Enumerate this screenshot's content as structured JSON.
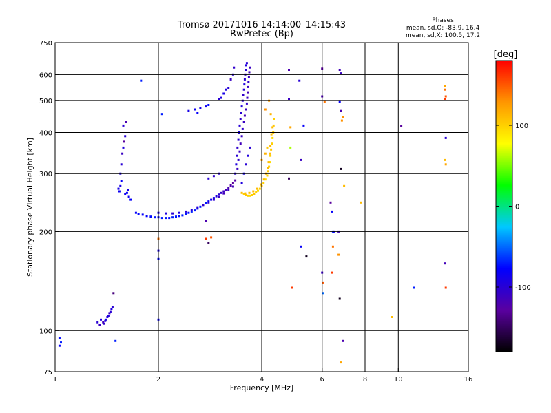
{
  "chart_data": {
    "type": "scatter",
    "title": "Tromsø 20171016 14:14:00–14:15:43",
    "subtitle": "RwPretec (Bp)",
    "stats": {
      "heading": "Phases",
      "line1": "mean, sd,O: -83.9, 16.4",
      "line2": "mean, sd,X: 100.5, 17.2"
    },
    "xlabel": "Frequency [MHz]",
    "ylabel": "Stationary phase Virtual Height [km]",
    "x_scale": "log",
    "y_scale": "log",
    "xlim": [
      1,
      16
    ],
    "ylim": [
      75,
      750
    ],
    "x_ticks": [
      1,
      2,
      4,
      6,
      8,
      10,
      16
    ],
    "y_ticks": [
      75,
      100,
      200,
      300,
      400,
      500,
      600,
      750
    ],
    "x_grid": [
      2,
      4,
      6,
      8,
      10
    ],
    "y_grid": [
      100,
      200,
      300,
      400,
      500,
      600
    ],
    "grid": true,
    "colorbar": {
      "label": "[deg]",
      "ticks": [
        100,
        0,
        -100
      ],
      "range": [
        -180,
        180
      ],
      "colors": [
        "#000000",
        "#5a00a0",
        "#0000ff",
        "#00c8ff",
        "#00ff00",
        "#ffff00",
        "#ff9600",
        "#ff0000"
      ]
    },
    "series": [
      {
        "points": [
          [
            1.33,
            106,
            -100
          ],
          [
            1.35,
            104,
            -110
          ],
          [
            1.36,
            108,
            -95
          ],
          [
            1.38,
            106,
            -115
          ],
          [
            1.39,
            105,
            -105
          ],
          [
            1.4,
            107,
            -100
          ],
          [
            1.41,
            108,
            -90
          ],
          [
            1.42,
            110,
            -100
          ],
          [
            1.43,
            111,
            -95
          ],
          [
            1.44,
            113,
            -110
          ],
          [
            1.45,
            114,
            -100
          ],
          [
            1.46,
            116,
            -95
          ],
          [
            1.47,
            118,
            -100
          ],
          [
            1.48,
            130,
            -140
          ],
          [
            1.53,
            270,
            -90
          ],
          [
            1.54,
            265,
            -85
          ],
          [
            1.55,
            275,
            -90
          ],
          [
            1.56,
            285,
            -80
          ],
          [
            1.55,
            300,
            -95
          ],
          [
            1.56,
            320,
            -100
          ],
          [
            1.57,
            345,
            -110
          ],
          [
            1.58,
            360,
            -95
          ],
          [
            1.59,
            375,
            -130
          ],
          [
            1.6,
            390,
            -100
          ],
          [
            1.61,
            430,
            -120
          ],
          [
            1.58,
            420,
            -100
          ],
          [
            1.6,
            260,
            -85
          ],
          [
            1.62,
            262,
            -80
          ],
          [
            1.63,
            268,
            -90
          ],
          [
            1.64,
            255,
            -85
          ],
          [
            1.66,
            250,
            -80
          ],
          [
            1.72,
            228,
            -80
          ],
          [
            1.75,
            226,
            -75
          ],
          [
            1.8,
            225,
            -80
          ],
          [
            1.85,
            223,
            -78
          ],
          [
            1.9,
            222,
            -75
          ],
          [
            1.95,
            221,
            -72
          ],
          [
            2.0,
            221,
            -75
          ],
          [
            2.05,
            220,
            -70
          ],
          [
            2.1,
            220,
            -72
          ],
          [
            2.15,
            220,
            -75
          ],
          [
            2.2,
            221,
            -70
          ],
          [
            2.25,
            222,
            -72
          ],
          [
            2.3,
            223,
            -75
          ],
          [
            2.35,
            224,
            -70
          ],
          [
            2.4,
            226,
            -72
          ],
          [
            2.45,
            228,
            -75
          ],
          [
            2.5,
            230,
            -70
          ],
          [
            2.55,
            232,
            -72
          ],
          [
            2.6,
            235,
            -75
          ],
          [
            2.65,
            238,
            -70
          ],
          [
            2.7,
            241,
            -75
          ],
          [
            2.75,
            244,
            -72
          ],
          [
            2.8,
            247,
            -80
          ],
          [
            2.85,
            250,
            -85
          ],
          [
            2.9,
            253,
            -90
          ],
          [
            2.95,
            256,
            -95
          ],
          [
            3.0,
            259,
            -100
          ],
          [
            3.05,
            262,
            -105
          ],
          [
            3.1,
            265,
            -110
          ],
          [
            3.15,
            268,
            -115
          ],
          [
            3.2,
            272,
            -120
          ],
          [
            3.25,
            276,
            -125
          ],
          [
            3.3,
            281,
            -130
          ],
          [
            3.35,
            286,
            -125
          ],
          [
            2.0,
            228,
            -90
          ],
          [
            2.1,
            227,
            -95
          ],
          [
            2.2,
            227,
            -100
          ],
          [
            2.3,
            228,
            -95
          ],
          [
            2.4,
            230,
            -100
          ],
          [
            2.5,
            233,
            -95
          ],
          [
            2.6,
            237,
            -100
          ],
          [
            2.7,
            241,
            -105
          ],
          [
            2.8,
            245,
            -100
          ],
          [
            2.9,
            250,
            -105
          ],
          [
            3.0,
            255,
            -110
          ],
          [
            3.1,
            261,
            -115
          ],
          [
            3.2,
            267,
            -110
          ],
          [
            3.3,
            274,
            -115
          ],
          [
            3.35,
            300,
            -100
          ],
          [
            3.37,
            320,
            -95
          ],
          [
            3.38,
            340,
            -100
          ],
          [
            3.4,
            360,
            -105
          ],
          [
            3.42,
            380,
            -100
          ],
          [
            3.43,
            400,
            -95
          ],
          [
            3.45,
            420,
            -100
          ],
          [
            3.47,
            440,
            -105
          ],
          [
            3.48,
            460,
            -100
          ],
          [
            3.5,
            480,
            -95
          ],
          [
            3.52,
            500,
            -100
          ],
          [
            3.53,
            520,
            -105
          ],
          [
            3.55,
            540,
            -100
          ],
          [
            3.56,
            560,
            -95
          ],
          [
            3.57,
            580,
            -100
          ],
          [
            3.58,
            600,
            -105
          ],
          [
            3.59,
            620,
            -100
          ],
          [
            3.6,
            640,
            -95
          ],
          [
            3.62,
            650,
            -100
          ],
          [
            3.4,
            310,
            -110
          ],
          [
            3.42,
            330,
            -105
          ],
          [
            3.45,
            350,
            -110
          ],
          [
            3.47,
            370,
            -115
          ],
          [
            3.5,
            390,
            -110
          ],
          [
            3.52,
            410,
            -105
          ],
          [
            3.55,
            430,
            -110
          ],
          [
            3.57,
            450,
            -115
          ],
          [
            3.6,
            470,
            -110
          ],
          [
            3.62,
            490,
            -105
          ],
          [
            3.63,
            510,
            -110
          ],
          [
            3.64,
            530,
            -115
          ],
          [
            3.65,
            550,
            -110
          ],
          [
            3.66,
            570,
            -105
          ],
          [
            3.67,
            590,
            -110
          ],
          [
            3.68,
            610,
            -115
          ],
          [
            3.69,
            630,
            -110
          ],
          [
            3.3,
            600,
            -100
          ],
          [
            3.32,
            630,
            -105
          ],
          [
            3.25,
            580,
            -110
          ],
          [
            3.5,
            280,
            -95
          ],
          [
            3.55,
            300,
            -90
          ],
          [
            3.6,
            320,
            -100
          ],
          [
            3.65,
            340,
            -95
          ],
          [
            3.7,
            360,
            -100
          ],
          [
            2.45,
            465,
            -90
          ],
          [
            2.55,
            470,
            -85
          ],
          [
            2.6,
            460,
            -80
          ],
          [
            2.65,
            475,
            -90
          ],
          [
            2.75,
            480,
            -85
          ],
          [
            2.8,
            485,
            -75
          ],
          [
            3.0,
            505,
            -100
          ],
          [
            3.05,
            510,
            -95
          ],
          [
            3.1,
            525,
            -90
          ],
          [
            3.15,
            540,
            -95
          ],
          [
            3.2,
            545,
            -100
          ],
          [
            2.75,
            215,
            -120
          ],
          [
            2.8,
            290,
            -100
          ],
          [
            2.9,
            295,
            -105
          ],
          [
            3.0,
            300,
            -100
          ],
          [
            1.78,
            575,
            -70
          ],
          [
            2.05,
            455,
            -70
          ],
          [
            2.0,
            175,
            -90
          ],
          [
            2.0,
            165,
            -75
          ],
          [
            2.0,
            108,
            -80
          ],
          [
            1.03,
            95,
            -75
          ],
          [
            1.04,
            92,
            -70
          ],
          [
            1.03,
            90,
            -80
          ],
          [
            1.5,
            93,
            -70
          ],
          [
            2.75,
            190,
            160
          ],
          [
            2.85,
            192,
            150
          ],
          [
            2.8,
            185,
            -150
          ],
          [
            2.0,
            190,
            140
          ],
          [
            4.8,
            620,
            -120
          ],
          [
            5.15,
            575,
            -100
          ],
          [
            5.3,
            420,
            -80
          ],
          [
            5.2,
            330,
            -110
          ],
          [
            4.8,
            290,
            -150
          ],
          [
            5.2,
            180,
            -80
          ],
          [
            5.4,
            168,
            -170
          ],
          [
            4.9,
            135,
            160
          ],
          [
            4.85,
            415,
            120
          ],
          [
            4.85,
            360,
            60
          ],
          [
            4.8,
            505,
            -110
          ],
          [
            6.0,
            625,
            -130
          ],
          [
            6.0,
            515,
            -120
          ],
          [
            6.1,
            495,
            140
          ],
          [
            6.0,
            150,
            -110
          ],
          [
            6.05,
            140,
            150
          ],
          [
            6.05,
            130,
            -50
          ],
          [
            6.35,
            245,
            -130
          ],
          [
            6.4,
            230,
            -80
          ],
          [
            6.45,
            200,
            -70
          ],
          [
            6.45,
            180,
            140
          ],
          [
            6.4,
            150,
            160
          ],
          [
            6.5,
            200,
            -80
          ],
          [
            6.7,
            170,
            130
          ],
          [
            6.75,
            620,
            -115
          ],
          [
            6.8,
            605,
            -110
          ],
          [
            6.75,
            495,
            -80
          ],
          [
            6.8,
            465,
            -120
          ],
          [
            6.85,
            435,
            130
          ],
          [
            6.9,
            445,
            130
          ],
          [
            6.8,
            310,
            -170
          ],
          [
            6.95,
            275,
            110
          ],
          [
            6.7,
            200,
            -115
          ],
          [
            6.75,
            125,
            -170
          ],
          [
            6.9,
            93,
            -120
          ],
          [
            6.8,
            80,
            120
          ],
          [
            7.8,
            245,
            110
          ],
          [
            9.6,
            110,
            110
          ],
          [
            10.2,
            418,
            -130
          ],
          [
            11.1,
            135,
            -70
          ],
          [
            13.7,
            555,
            120
          ],
          [
            13.7,
            540,
            140
          ],
          [
            13.75,
            515,
            150
          ],
          [
            13.7,
            505,
            160
          ],
          [
            13.75,
            385,
            -100
          ],
          [
            13.7,
            330,
            110
          ],
          [
            13.75,
            320,
            120
          ],
          [
            13.7,
            160,
            -115
          ],
          [
            13.75,
            135,
            160
          ]
        ]
      },
      {
        "points": [
          [
            3.55,
            260,
            100
          ],
          [
            3.6,
            258,
            105
          ],
          [
            3.65,
            257,
            100
          ],
          [
            3.7,
            257,
            95
          ],
          [
            3.75,
            258,
            100
          ],
          [
            3.8,
            260,
            105
          ],
          [
            3.85,
            263,
            100
          ],
          [
            3.9,
            266,
            95
          ],
          [
            3.95,
            270,
            100
          ],
          [
            4.0,
            275,
            105
          ],
          [
            4.05,
            281,
            100
          ],
          [
            4.1,
            288,
            95
          ],
          [
            4.15,
            296,
            100
          ],
          [
            4.18,
            305,
            105
          ],
          [
            4.2,
            315,
            100
          ],
          [
            4.22,
            325,
            95
          ],
          [
            4.24,
            340,
            100
          ],
          [
            4.26,
            355,
            105
          ],
          [
            4.28,
            370,
            100
          ],
          [
            4.3,
            385,
            95
          ],
          [
            4.32,
            400,
            100
          ],
          [
            4.33,
            420,
            105
          ],
          [
            4.34,
            440,
            100
          ],
          [
            3.5,
            262,
            110
          ],
          [
            3.58,
            261,
            110
          ],
          [
            3.68,
            262,
            110
          ],
          [
            3.78,
            265,
            110
          ],
          [
            3.88,
            270,
            110
          ],
          [
            3.98,
            278,
            110
          ],
          [
            4.06,
            288,
            110
          ],
          [
            4.12,
            300,
            110
          ],
          [
            4.16,
            312,
            110
          ],
          [
            4.19,
            325,
            110
          ],
          [
            4.22,
            345,
            110
          ],
          [
            4.24,
            365,
            110
          ],
          [
            4.27,
            395,
            110
          ],
          [
            4.3,
            415,
            110
          ],
          [
            4.0,
            330,
            120
          ],
          [
            4.1,
            345,
            115
          ],
          [
            4.15,
            360,
            105
          ],
          [
            4.1,
            470,
            130
          ],
          [
            4.2,
            500,
            125
          ],
          [
            4.25,
            455,
            115
          ]
        ]
      }
    ]
  }
}
